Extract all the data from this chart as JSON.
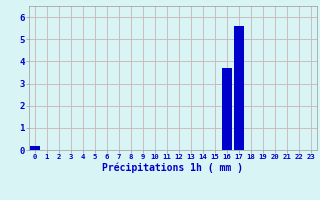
{
  "hours": [
    0,
    1,
    2,
    3,
    4,
    5,
    6,
    7,
    8,
    9,
    10,
    11,
    12,
    13,
    14,
    15,
    16,
    17,
    18,
    19,
    20,
    21,
    22,
    23
  ],
  "values": [
    0.2,
    0,
    0,
    0,
    0,
    0,
    0,
    0,
    0,
    0,
    0,
    0,
    0,
    0,
    0,
    0,
    3.7,
    5.6,
    0,
    0,
    0,
    0,
    0,
    0
  ],
  "bar_color": "#0000cc",
  "background_color": "#d8f4f4",
  "grid_color": "#c8b4b4",
  "xlabel": "Précipitations 1h ( mm )",
  "tick_color": "#0000cc",
  "ylim": [
    0,
    6.5
  ],
  "yticks": [
    0,
    1,
    2,
    3,
    4,
    5,
    6
  ],
  "xlim": [
    -0.5,
    23.5
  ]
}
